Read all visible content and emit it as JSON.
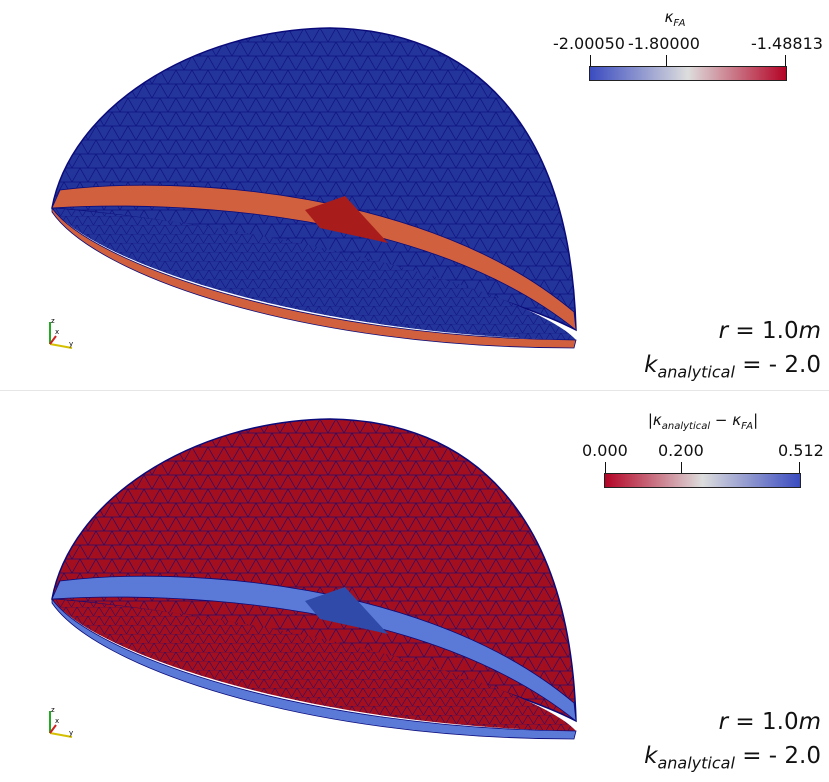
{
  "panels": [
    {
      "colorbar": {
        "title": "κ",
        "title_sub": "FA",
        "tick_labels": [
          "-2.00050",
          "-1.80000",
          "-1.48813"
        ],
        "colormap": "Cool to Warm",
        "gradient": [
          "#3b4cc0",
          "#dddddd",
          "#b40426"
        ]
      },
      "shell_color": "#23349a",
      "band_color": "#d0603e",
      "patch_color": "#a81c1c",
      "radius_text": {
        "var": "r",
        "value": "= 1.0",
        "unit": "m"
      },
      "analytical_text": {
        "var": "k",
        "sub": "analytical",
        "value": "= - 2.0"
      }
    },
    {
      "colorbar": {
        "title": "|κ",
        "title_sub": "analytical",
        "title_mid": " − κ",
        "title_sub2": "FA",
        "title_end": "|",
        "tick_labels": [
          "0.000",
          "0.200",
          "0.512"
        ],
        "colormap": "Cool to Warm (reversed)",
        "gradient": [
          "#b40426",
          "#dddddd",
          "#3b4cc0"
        ]
      },
      "shell_color": "#a30f1f",
      "band_color": "#5b7ad8",
      "patch_color": "#2f4aa8",
      "radius_text": {
        "var": "r",
        "value": "= 1.0",
        "unit": "m"
      },
      "analytical_text": {
        "var": "k",
        "sub": "analytical",
        "value": "= - 2.0"
      }
    }
  ],
  "mesh_edge_color": "#0a0a7a",
  "axes_icon": {
    "z": "z",
    "x": "x",
    "y": "y"
  }
}
